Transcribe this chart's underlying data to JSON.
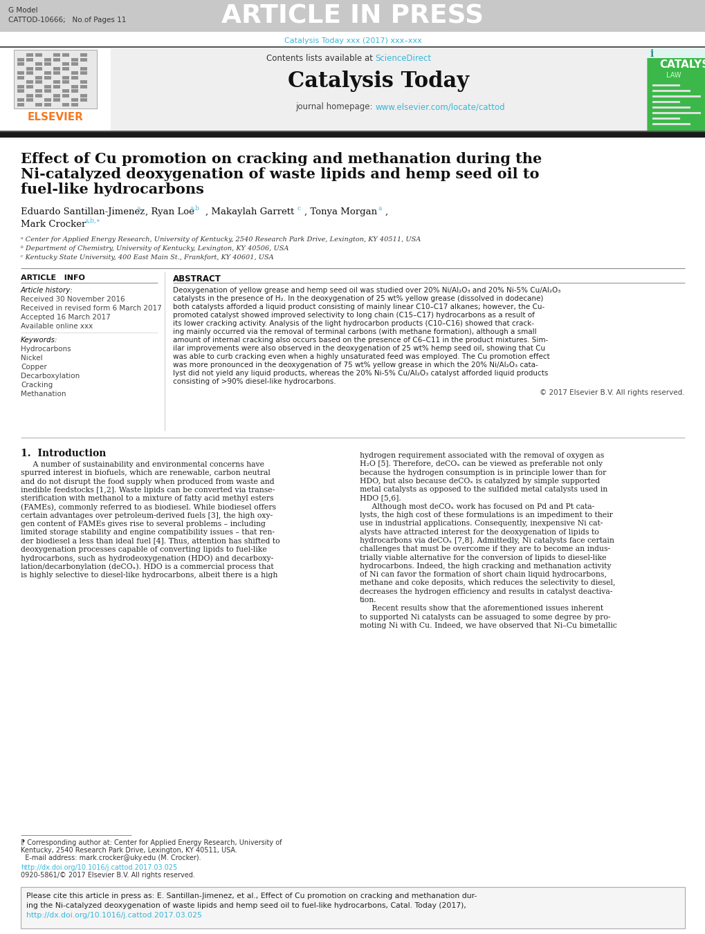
{
  "page_bg": "#ffffff",
  "header_bar_color": "#c8c8c8",
  "header_bar_text": "ARTICLE IN PRESS",
  "header_bar_text_color": "#ffffff",
  "gmodel_text": "G Model",
  "cattod_text": "CATTOD-10666;   No.of Pages 11",
  "journal_url_text": "Catalysis Today xxx (2017) xxx–xxx",
  "journal_url_color": "#3ab5d8",
  "elsevier_color": "#f47920",
  "elsevier_text": "ELSEVIER",
  "contents_text": "Contents lists available at ",
  "sciencedirect_text": "ScienceDirect",
  "sciencedirect_color": "#3ab5d8",
  "journal_name": "Catalysis Today",
  "journal_homepage_text": "journal homepage: ",
  "journal_homepage_url": "www.elsevier.com/locate/cattod",
  "journal_homepage_url_color": "#3ab5d8",
  "article_title_line1": "Effect of Cu promotion on cracking and methanation during the",
  "article_title_line2": "Ni-catalyzed deoxygenation of waste lipids and hemp seed oil to",
  "article_title_line3": "fuel-like hydrocarbons",
  "author_main": "Eduardo Santillan-Jimenez",
  "author_main_sup": "a",
  "author2": ", Ryan Loe",
  "author2_sup": "a,b",
  "author3": ", Makaylah Garrett",
  "author3_sup": "c",
  "author4": ", Tonya Morgan",
  "author4_sup": "a",
  "author5": ",",
  "author6": "Mark Crocker",
  "author6_sup": "a,b,∗",
  "affil_a": "ᵃ Center for Applied Energy Research, University of Kentucky, 2540 Research Park Drive, Lexington, KY 40511, USA",
  "affil_b": "ᵇ Department of Chemistry, University of Kentucky, Lexington, KY 40506, USA",
  "affil_c": "ᶜ Kentucky State University, 400 East Main St., Frankfort, KY 40601, USA",
  "article_info_title": "ARTICLE   INFO",
  "article_history_title": "Article history:",
  "received_text": "Received 30 November 2016",
  "revised_text": "Received in revised form 6 March 2017",
  "accepted_text": "Accepted 16 March 2017",
  "available_text": "Available online xxx",
  "keywords_title": "Keywords:",
  "keywords": [
    "Hydrocarbons",
    "Nickel",
    "Copper",
    "Decarboxylation",
    "Cracking",
    "Methanation"
  ],
  "abstract_title": "ABSTRACT",
  "abstract_lines": [
    "Deoxygenation of yellow grease and hemp seed oil was studied over 20% Ni/Al₂O₃ and 20% Ni-5% Cu/Al₂O₃",
    "catalysts in the presence of H₂. In the deoxygenation of 25 wt% yellow grease (dissolved in dodecane)",
    "both catalysts afforded a liquid product consisting of mainly linear C10–C17 alkanes; however, the Cu-",
    "promoted catalyst showed improved selectivity to long chain (C15–C17) hydrocarbons as a result of",
    "its lower cracking activity. Analysis of the light hydrocarbon products (C10–C16) showed that crack-",
    "ing mainly occurred via the removal of terminal carbons (with methane formation), although a small",
    "amount of internal cracking also occurs based on the presence of C6–C11 in the product mixtures. Sim-",
    "ilar improvements were also observed in the deoxygenation of 25 wt% hemp seed oil, showing that Cu",
    "was able to curb cracking even when a highly unsaturated feed was employed. The Cu promotion effect",
    "was more pronounced in the deoxygenation of 75 wt% yellow grease in which the 20% Ni/Al₂O₃ cata-",
    "lyst did not yield any liquid products, whereas the 20% Ni-5% Cu/Al₂O₃ catalyst afforded liquid products",
    "consisting of >90% diesel-like hydrocarbons."
  ],
  "copyright_text": "© 2017 Elsevier B.V. All rights reserved.",
  "intro_title": "1.  Introduction",
  "intro_col1_lines": [
    "     A number of sustainability and environmental concerns have",
    "spurred interest in biofuels, which are renewable, carbon neutral",
    "and do not disrupt the food supply when produced from waste and",
    "inedible feedstocks [1,2]. Waste lipids can be converted via transe-",
    "sterification with methanol to a mixture of fatty acid methyl esters",
    "(FAMEs), commonly referred to as biodiesel. While biodiesel offers",
    "certain advantages over petroleum-derived fuels [3], the high oxy-",
    "gen content of FAMEs gives rise to several problems – including",
    "limited storage stability and engine compatibility issues – that ren-",
    "der biodiesel a less than ideal fuel [4]. Thus, attention has shifted to",
    "deoxygenation processes capable of converting lipids to fuel-like",
    "hydrocarbons, such as hydrodeoxygenation (HDO) and decarboxy-",
    "lation/decarbonylation (deCOₓ). HDO is a commercial process that",
    "is highly selective to diesel-like hydrocarbons, albeit there is a high"
  ],
  "intro_col2_lines": [
    "hydrogen requirement associated with the removal of oxygen as",
    "H₂O [5]. Therefore, deCOₓ can be viewed as preferable not only",
    "because the hydrogen consumption is in principle lower than for",
    "HDO, but also because deCOₓ is catalyzed by simple supported",
    "metal catalysts as opposed to the sulfided metal catalysts used in",
    "HDO [5,6].",
    "     Although most deCOₓ work has focused on Pd and Pt cata-",
    "lysts, the high cost of these formulations is an impediment to their",
    "use in industrial applications. Consequently, inexpensive Ni cat-",
    "alysts have attracted interest for the deoxygenation of lipids to",
    "hydrocarbons via deCOₓ [7,8]. Admittedly, Ni catalysts face certain",
    "challenges that must be overcome if they are to become an indus-",
    "trially viable alternative for the conversion of lipids to diesel-like",
    "hydrocarbons. Indeed, the high cracking and methanation activity",
    "of Ni can favor the formation of short chain liquid hydrocarbons,",
    "methane and coke deposits, which reduces the selectivity to diesel,",
    "decreases the hydrogen efficiency and results in catalyst deactiva-",
    "tion.",
    "     Recent results show that the aforementioned issues inherent",
    "to supported Ni catalysts can be assuaged to some degree by pro-",
    "moting Ni with Cu. Indeed, we have observed that Ni–Cu bimetallic"
  ],
  "footnote_line1": "⁋ Corresponding author at: Center for Applied Energy Research, University of",
  "footnote_line2": "Kentucky, 2540 Research Park Drive, Lexington, KY 40511, USA.",
  "footnote_line3": "  E-mail address: mark.crocker@uky.edu (M. Crocker).",
  "doi_link": "http://dx.doi.org/10.1016/j.cattod.2017.03.025",
  "doi_link_color": "#3ab5d8",
  "issn_text": "0920-5861/© 2017 Elsevier B.V. All rights reserved.",
  "cite_line1": "Please cite this article in press as: E. Santillan-Jimenez, et al., Effect of Cu promotion on cracking and methanation dur-",
  "cite_line2": "ing the Ni-catalyzed deoxygenation of waste lipids and hemp seed oil to fuel-like hydrocarbons, Catal. Today (2017),",
  "cite_line3": "http://dx.doi.org/10.1016/j.cattod.2017.03.025",
  "cite_doi_color": "#3ab5d8",
  "black_bar_color": "#1a1a1a",
  "header_content_bg": "#efefef",
  "cover_green": "#3cb84a",
  "cover_dark_green": "#2a9038"
}
